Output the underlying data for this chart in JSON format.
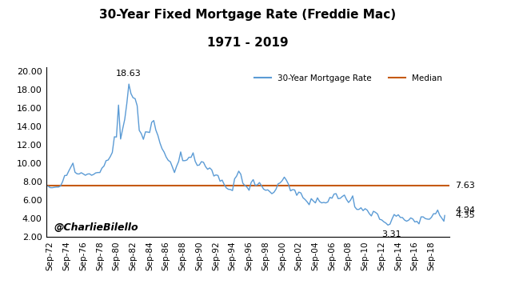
{
  "title_line1": "30-Year Fixed Mortgage Rate (Freddie Mac)",
  "title_line2": "1971 - 2019",
  "line_color": "#5B9BD5",
  "median_color": "#C55A11",
  "median_value": 7.63,
  "ylim": [
    2.0,
    20.5
  ],
  "yticks": [
    2.0,
    4.0,
    6.0,
    8.0,
    10.0,
    12.0,
    14.0,
    16.0,
    18.0,
    20.0
  ],
  "legend_label_rate": "30-Year Mortgage Rate",
  "legend_label_median": "Median",
  "watermark": "@CharlieBilello",
  "background_color": "#FFFFFF",
  "xlim_left": 1971.5,
  "xlim_right": 2020.2,
  "dates_rates": [
    [
      1971.75,
      7.54
    ],
    [
      1972.0,
      7.38
    ],
    [
      1972.25,
      7.37
    ],
    [
      1972.5,
      7.41
    ],
    [
      1972.75,
      7.44
    ],
    [
      1973.0,
      7.44
    ],
    [
      1973.25,
      7.55
    ],
    [
      1973.5,
      8.02
    ],
    [
      1973.75,
      8.69
    ],
    [
      1974.0,
      8.71
    ],
    [
      1974.25,
      9.19
    ],
    [
      1974.5,
      9.61
    ],
    [
      1974.75,
      10.04
    ],
    [
      1975.0,
      9.05
    ],
    [
      1975.25,
      8.88
    ],
    [
      1975.5,
      8.86
    ],
    [
      1975.75,
      9.0
    ],
    [
      1976.0,
      8.87
    ],
    [
      1976.25,
      8.72
    ],
    [
      1976.5,
      8.85
    ],
    [
      1976.75,
      8.88
    ],
    [
      1977.0,
      8.72
    ],
    [
      1977.25,
      8.82
    ],
    [
      1977.5,
      8.98
    ],
    [
      1977.75,
      9.02
    ],
    [
      1978.0,
      9.02
    ],
    [
      1978.25,
      9.5
    ],
    [
      1978.5,
      9.73
    ],
    [
      1978.75,
      10.31
    ],
    [
      1979.0,
      10.38
    ],
    [
      1979.25,
      10.74
    ],
    [
      1979.5,
      11.2
    ],
    [
      1979.75,
      12.9
    ],
    [
      1980.0,
      12.88
    ],
    [
      1980.25,
      16.35
    ],
    [
      1980.5,
      12.66
    ],
    [
      1980.75,
      13.76
    ],
    [
      1981.0,
      14.8
    ],
    [
      1981.25,
      16.52
    ],
    [
      1981.5,
      18.63
    ],
    [
      1981.75,
      17.6
    ],
    [
      1982.0,
      17.15
    ],
    [
      1982.25,
      17.05
    ],
    [
      1982.5,
      16.28
    ],
    [
      1982.75,
      13.6
    ],
    [
      1983.0,
      13.24
    ],
    [
      1983.25,
      12.63
    ],
    [
      1983.5,
      13.44
    ],
    [
      1983.75,
      13.42
    ],
    [
      1984.0,
      13.37
    ],
    [
      1984.25,
      14.47
    ],
    [
      1984.5,
      14.67
    ],
    [
      1984.75,
      13.64
    ],
    [
      1985.0,
      13.05
    ],
    [
      1985.25,
      12.23
    ],
    [
      1985.5,
      11.61
    ],
    [
      1985.75,
      11.24
    ],
    [
      1986.0,
      10.7
    ],
    [
      1986.25,
      10.34
    ],
    [
      1986.5,
      10.19
    ],
    [
      1986.75,
      9.62
    ],
    [
      1987.0,
      9.02
    ],
    [
      1987.25,
      9.69
    ],
    [
      1987.5,
      10.22
    ],
    [
      1987.75,
      11.26
    ],
    [
      1988.0,
      10.31
    ],
    [
      1988.25,
      10.31
    ],
    [
      1988.5,
      10.38
    ],
    [
      1988.75,
      10.68
    ],
    [
      1989.0,
      10.67
    ],
    [
      1989.25,
      11.16
    ],
    [
      1989.5,
      10.24
    ],
    [
      1989.75,
      9.79
    ],
    [
      1990.0,
      9.84
    ],
    [
      1990.25,
      10.2
    ],
    [
      1990.5,
      10.13
    ],
    [
      1990.75,
      9.66
    ],
    [
      1991.0,
      9.37
    ],
    [
      1991.25,
      9.52
    ],
    [
      1991.5,
      9.3
    ],
    [
      1991.75,
      8.64
    ],
    [
      1992.0,
      8.76
    ],
    [
      1992.25,
      8.7
    ],
    [
      1992.5,
      8.07
    ],
    [
      1992.75,
      8.2
    ],
    [
      1993.0,
      7.72
    ],
    [
      1993.25,
      7.35
    ],
    [
      1993.5,
      7.2
    ],
    [
      1993.75,
      7.17
    ],
    [
      1994.0,
      7.06
    ],
    [
      1994.25,
      8.33
    ],
    [
      1994.5,
      8.64
    ],
    [
      1994.75,
      9.17
    ],
    [
      1995.0,
      8.83
    ],
    [
      1995.25,
      7.85
    ],
    [
      1995.5,
      7.61
    ],
    [
      1995.75,
      7.43
    ],
    [
      1996.0,
      7.09
    ],
    [
      1996.25,
      7.94
    ],
    [
      1996.5,
      8.25
    ],
    [
      1996.75,
      7.62
    ],
    [
      1997.0,
      7.68
    ],
    [
      1997.25,
      7.93
    ],
    [
      1997.5,
      7.59
    ],
    [
      1997.75,
      7.22
    ],
    [
      1998.0,
      7.09
    ],
    [
      1998.25,
      7.14
    ],
    [
      1998.5,
      6.94
    ],
    [
      1998.75,
      6.72
    ],
    [
      1999.0,
      6.87
    ],
    [
      1999.25,
      7.21
    ],
    [
      1999.5,
      7.79
    ],
    [
      1999.75,
      7.9
    ],
    [
      2000.0,
      8.15
    ],
    [
      2000.25,
      8.52
    ],
    [
      2000.5,
      8.19
    ],
    [
      2000.75,
      7.75
    ],
    [
      2001.0,
      7.03
    ],
    [
      2001.25,
      7.16
    ],
    [
      2001.5,
      7.13
    ],
    [
      2001.75,
      6.54
    ],
    [
      2002.0,
      6.89
    ],
    [
      2002.25,
      6.8
    ],
    [
      2002.5,
      6.29
    ],
    [
      2002.75,
      6.09
    ],
    [
      2003.0,
      5.84
    ],
    [
      2003.25,
      5.52
    ],
    [
      2003.5,
      6.18
    ],
    [
      2003.75,
      5.93
    ],
    [
      2004.0,
      5.72
    ],
    [
      2004.25,
      6.27
    ],
    [
      2004.5,
      5.88
    ],
    [
      2004.75,
      5.72
    ],
    [
      2005.0,
      5.77
    ],
    [
      2005.25,
      5.72
    ],
    [
      2005.5,
      5.82
    ],
    [
      2005.75,
      6.32
    ],
    [
      2006.0,
      6.23
    ],
    [
      2006.25,
      6.68
    ],
    [
      2006.5,
      6.72
    ],
    [
      2006.75,
      6.18
    ],
    [
      2007.0,
      6.22
    ],
    [
      2007.25,
      6.42
    ],
    [
      2007.5,
      6.57
    ],
    [
      2007.75,
      6.1
    ],
    [
      2008.0,
      5.76
    ],
    [
      2008.25,
      6.03
    ],
    [
      2008.5,
      6.48
    ],
    [
      2008.75,
      5.29
    ],
    [
      2009.0,
      5.01
    ],
    [
      2009.25,
      5.01
    ],
    [
      2009.5,
      5.19
    ],
    [
      2009.75,
      4.88
    ],
    [
      2010.0,
      5.09
    ],
    [
      2010.25,
      4.93
    ],
    [
      2010.5,
      4.56
    ],
    [
      2010.75,
      4.3
    ],
    [
      2011.0,
      4.81
    ],
    [
      2011.25,
      4.69
    ],
    [
      2011.5,
      4.51
    ],
    [
      2011.75,
      3.94
    ],
    [
      2012.0,
      3.87
    ],
    [
      2012.25,
      3.67
    ],
    [
      2012.5,
      3.53
    ],
    [
      2012.75,
      3.31
    ],
    [
      2013.0,
      3.41
    ],
    [
      2013.25,
      3.98
    ],
    [
      2013.5,
      4.46
    ],
    [
      2013.75,
      4.27
    ],
    [
      2014.0,
      4.43
    ],
    [
      2014.25,
      4.14
    ],
    [
      2014.5,
      4.13
    ],
    [
      2014.75,
      3.86
    ],
    [
      2015.0,
      3.73
    ],
    [
      2015.25,
      3.84
    ],
    [
      2015.5,
      4.09
    ],
    [
      2015.75,
      3.97
    ],
    [
      2016.0,
      3.65
    ],
    [
      2016.25,
      3.71
    ],
    [
      2016.5,
      3.44
    ],
    [
      2016.75,
      4.2
    ],
    [
      2017.0,
      4.2
    ],
    [
      2017.25,
      4.02
    ],
    [
      2017.5,
      3.96
    ],
    [
      2017.75,
      3.94
    ],
    [
      2018.0,
      4.15
    ],
    [
      2018.25,
      4.54
    ],
    [
      2018.5,
      4.53
    ],
    [
      2018.75,
      4.94
    ],
    [
      2019.0,
      4.37
    ],
    [
      2019.25,
      4.06
    ],
    [
      2019.5,
      3.73
    ],
    [
      2019.6,
      4.35
    ]
  ]
}
